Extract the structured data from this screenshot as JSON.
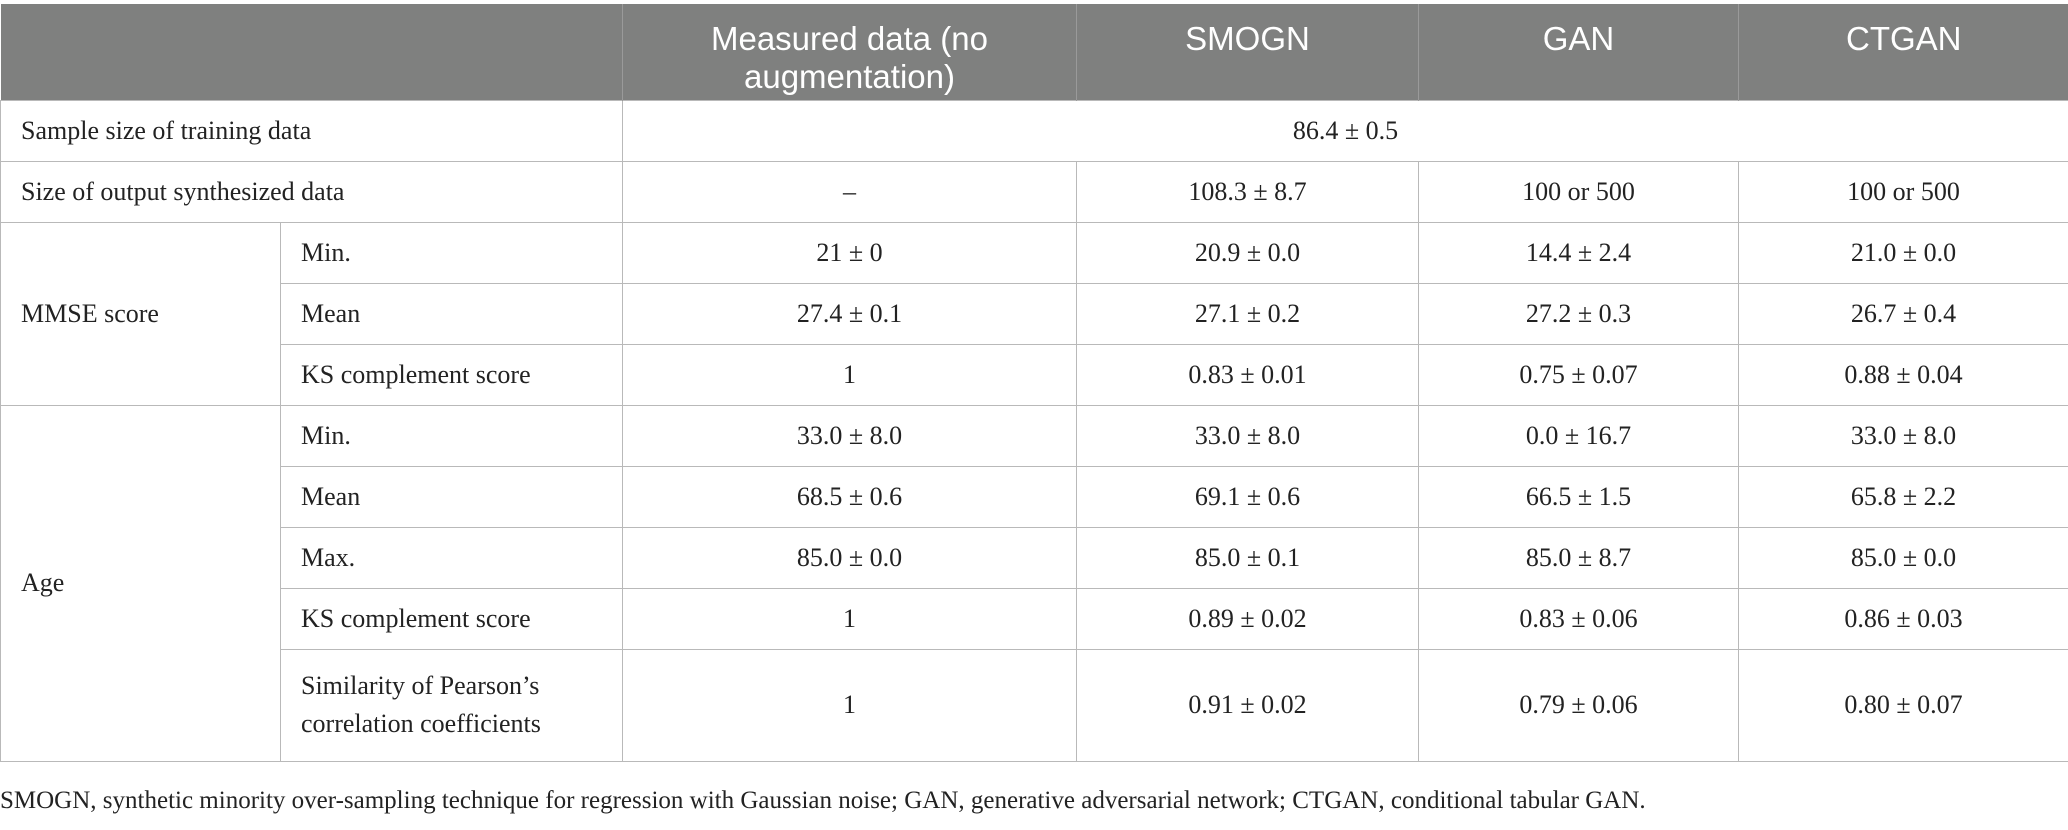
{
  "table": {
    "headers": [
      "",
      "Measured data (no augmentation)",
      "SMOGN",
      "GAN",
      "CTGAN"
    ],
    "sample_size": {
      "label": "Sample size of training data",
      "value": "86.4 ± 0.5"
    },
    "output_size": {
      "label": "Size of output synthesized data",
      "values": [
        "–",
        "108.3 ± 8.7",
        "100 or 500",
        "100 or 500"
      ]
    },
    "mmse": {
      "group": "MMSE score",
      "rows": [
        {
          "label": "Min.",
          "values": [
            "21 ± 0",
            "20.9 ± 0.0",
            "14.4 ± 2.4",
            "21.0 ± 0.0"
          ]
        },
        {
          "label": "Mean",
          "values": [
            "27.4 ± 0.1",
            "27.1 ± 0.2",
            "27.2 ± 0.3",
            "26.7 ± 0.4"
          ]
        },
        {
          "label": "KS complement score",
          "values": [
            "1",
            "0.83 ± 0.01",
            "0.75 ± 0.07",
            "0.88 ± 0.04"
          ]
        }
      ]
    },
    "age": {
      "group": "Age",
      "rows": [
        {
          "label": "Min.",
          "values": [
            "33.0 ± 8.0",
            "33.0 ± 8.0",
            "0.0 ± 16.7",
            "33.0 ± 8.0"
          ]
        },
        {
          "label": "Mean",
          "values": [
            "68.5 ± 0.6",
            "69.1 ± 0.6",
            "66.5 ± 1.5",
            "65.8 ± 2.2"
          ]
        },
        {
          "label": "Max.",
          "values": [
            "85.0 ± 0.0",
            "85.0 ± 0.1",
            "85.0 ± 8.7",
            "85.0 ± 0.0"
          ]
        },
        {
          "label": "KS complement score",
          "values": [
            "1",
            "0.89 ± 0.02",
            "0.83 ± 0.06",
            "0.86 ± 0.03"
          ]
        },
        {
          "label": "Similarity of Pearson’s correlation coefficients",
          "values": [
            "1",
            "0.91 ± 0.02",
            "0.79 ± 0.06",
            "0.80 ± 0.07"
          ]
        }
      ]
    }
  },
  "footnote": "SMOGN, synthetic minority over-sampling technique for regression with Gaussian noise; GAN, generative adversarial network; CTGAN, conditional tabular GAN."
}
